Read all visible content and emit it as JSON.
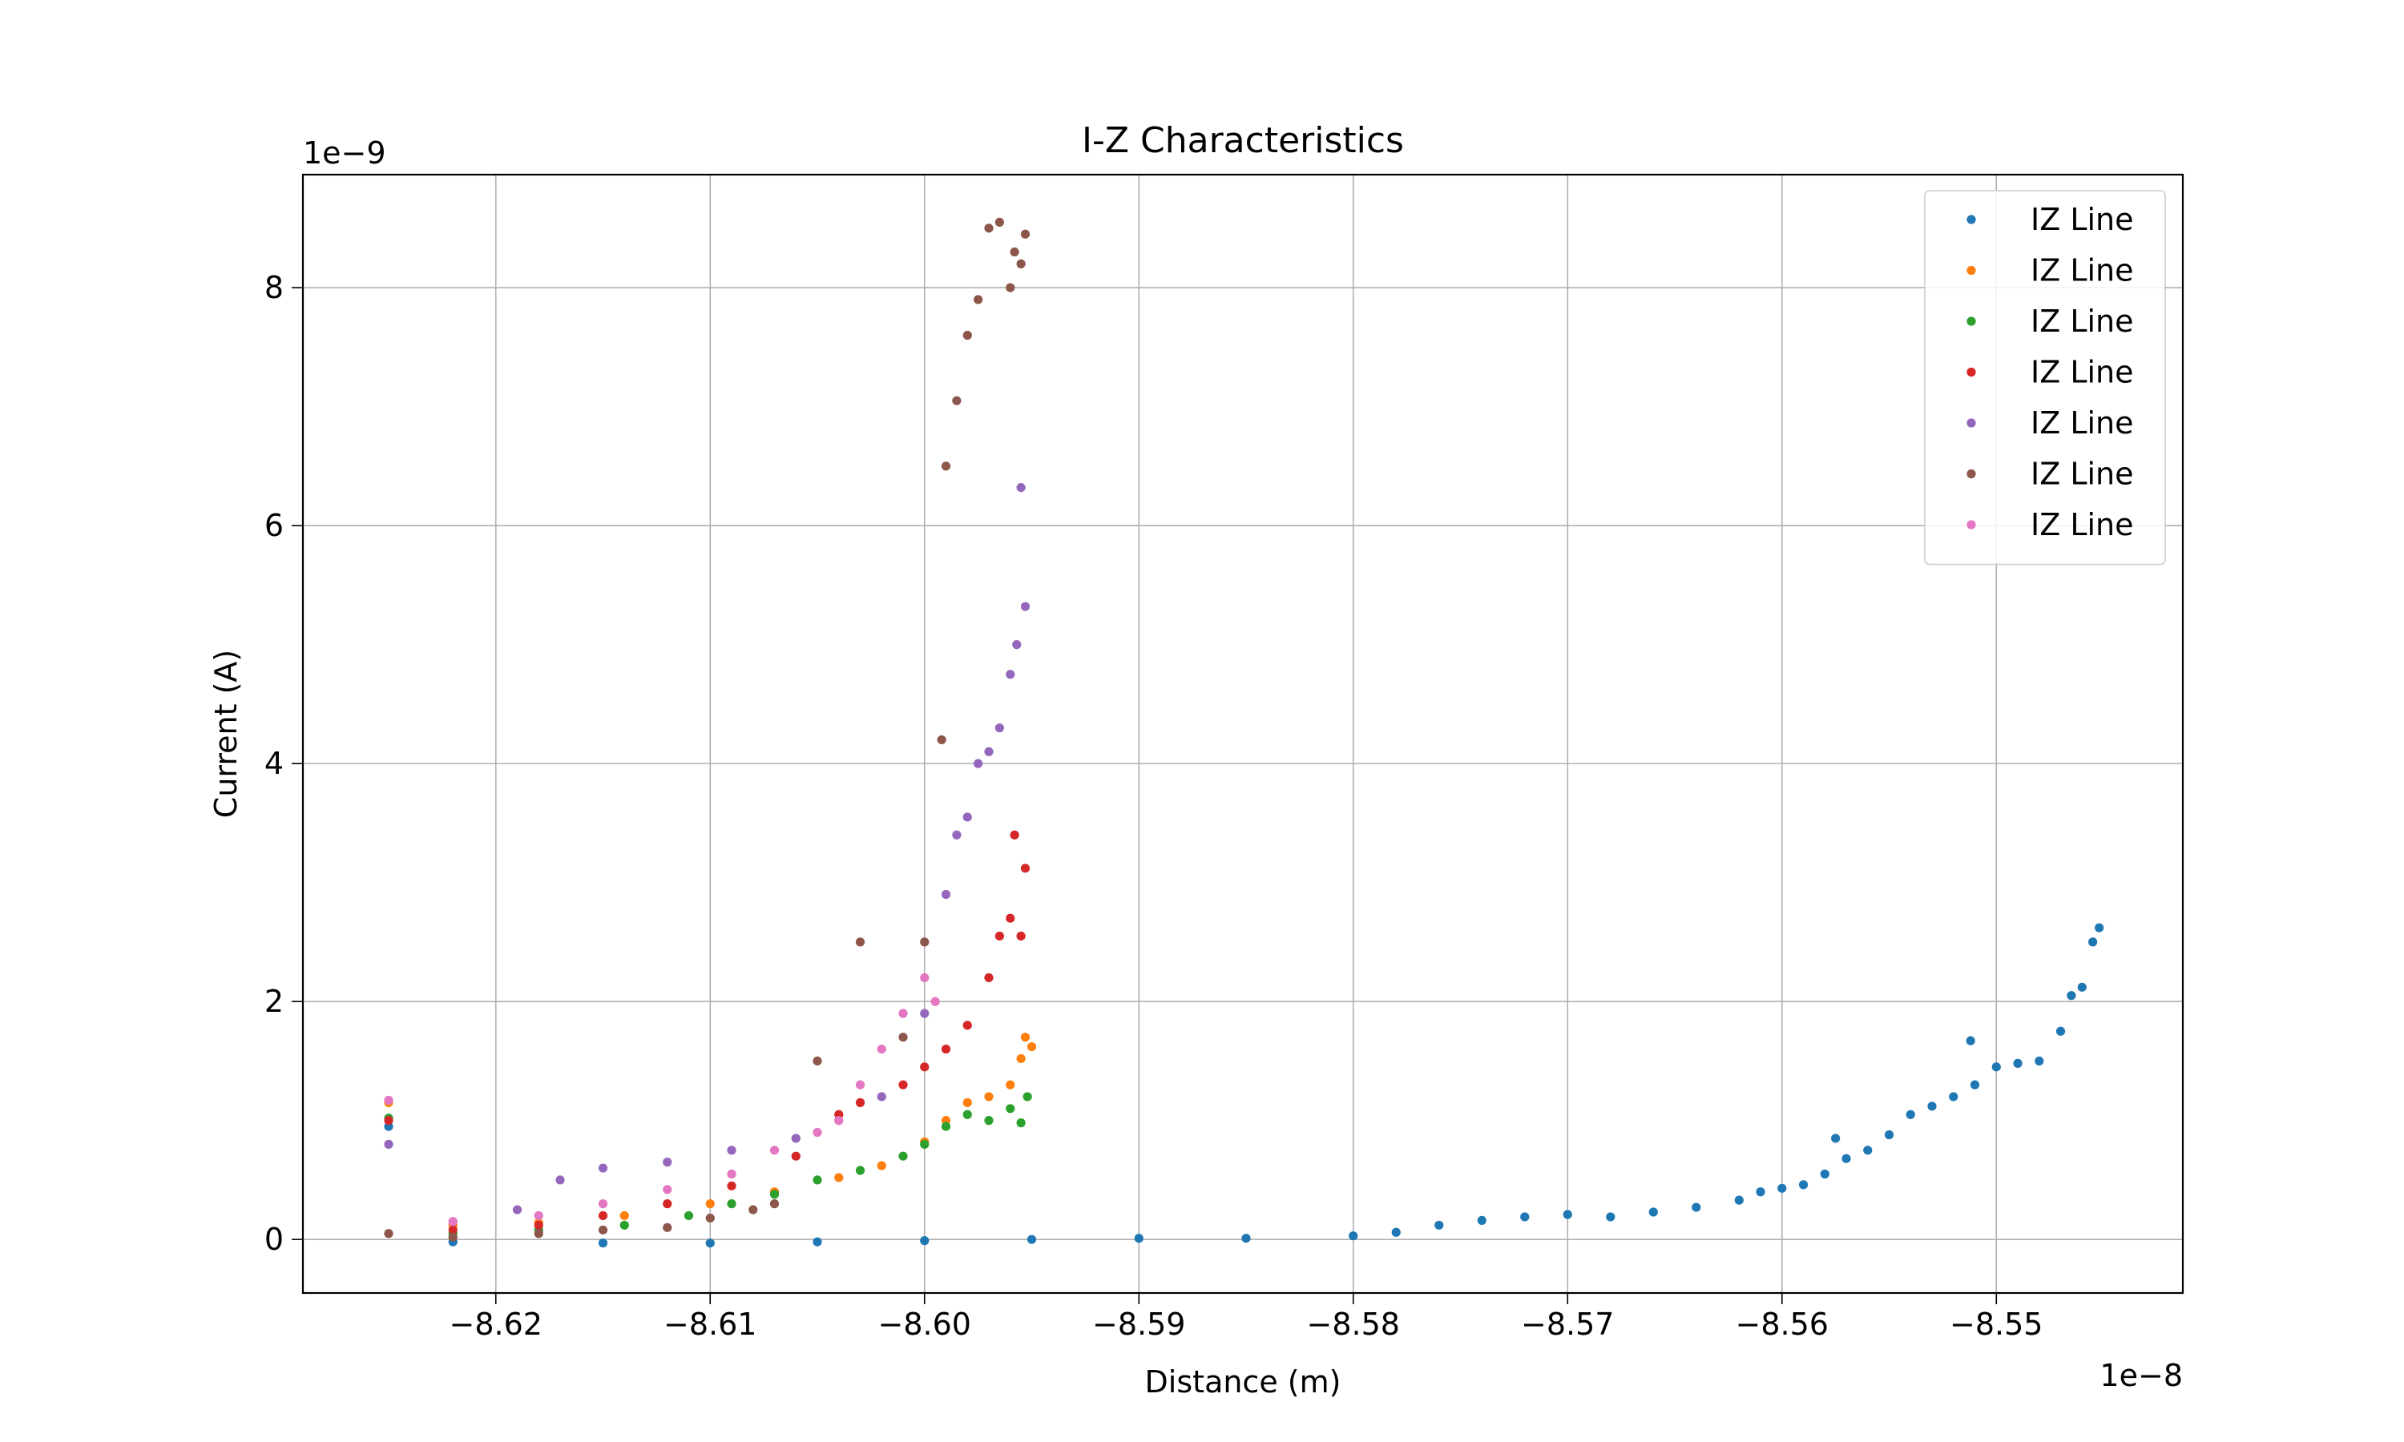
{
  "chart_data": {
    "type": "scatter",
    "title": "I-Z Characteristics",
    "xlabel": "Distance (m)",
    "ylabel": "Current (A)",
    "x_offset_text": "1e−8",
    "y_offset_text": "1e−9",
    "xlim": [
      -8.629,
      -8.5413
    ],
    "ylim": [
      -0.45,
      8.95
    ],
    "x_ticks": [
      -8.62,
      -8.61,
      -8.6,
      -8.59,
      -8.58,
      -8.57,
      -8.56,
      -8.55
    ],
    "x_tick_labels": [
      "−8.62",
      "−8.61",
      "−8.60",
      "−8.59",
      "−8.58",
      "−8.57",
      "−8.56",
      "−8.55"
    ],
    "y_ticks": [
      0,
      2,
      4,
      6,
      8
    ],
    "y_tick_labels": [
      "0",
      "2",
      "4",
      "6",
      "8"
    ],
    "grid": true,
    "legend_position": "top-right",
    "series": [
      {
        "name": "IZ Line",
        "color": "#1f77b4",
        "points": [
          [
            -8.625,
            0.95
          ],
          [
            -8.622,
            -0.02
          ],
          [
            -8.615,
            -0.03
          ],
          [
            -8.61,
            -0.03
          ],
          [
            -8.605,
            -0.02
          ],
          [
            -8.6,
            -0.01
          ],
          [
            -8.595,
            0.0
          ],
          [
            -8.59,
            0.01
          ],
          [
            -8.585,
            0.01
          ],
          [
            -8.58,
            0.03
          ],
          [
            -8.578,
            0.06
          ],
          [
            -8.576,
            0.12
          ],
          [
            -8.574,
            0.16
          ],
          [
            -8.572,
            0.19
          ],
          [
            -8.57,
            0.21
          ],
          [
            -8.568,
            0.19
          ],
          [
            -8.566,
            0.23
          ],
          [
            -8.564,
            0.27
          ],
          [
            -8.562,
            0.33
          ],
          [
            -8.561,
            0.4
          ],
          [
            -8.56,
            0.43
          ],
          [
            -8.559,
            0.46
          ],
          [
            -8.558,
            0.55
          ],
          [
            -8.5575,
            0.85
          ],
          [
            -8.557,
            0.68
          ],
          [
            -8.556,
            0.75
          ],
          [
            -8.555,
            0.88
          ],
          [
            -8.554,
            1.05
          ],
          [
            -8.553,
            1.12
          ],
          [
            -8.552,
            1.2
          ],
          [
            -8.5512,
            1.67
          ],
          [
            -8.551,
            1.3
          ],
          [
            -8.55,
            1.45
          ],
          [
            -8.549,
            1.48
          ],
          [
            -8.548,
            1.5
          ],
          [
            -8.547,
            1.75
          ],
          [
            -8.5465,
            2.05
          ],
          [
            -8.546,
            2.12
          ],
          [
            -8.5455,
            2.5
          ],
          [
            -8.5452,
            2.62
          ]
        ]
      },
      {
        "name": "IZ Line",
        "color": "#ff7f0e",
        "points": [
          [
            -8.625,
            1.15
          ],
          [
            -8.622,
            0.12
          ],
          [
            -8.618,
            0.14
          ],
          [
            -8.614,
            0.2
          ],
          [
            -8.61,
            0.3
          ],
          [
            -8.607,
            0.4
          ],
          [
            -8.604,
            0.52
          ],
          [
            -8.602,
            0.62
          ],
          [
            -8.6,
            0.82
          ],
          [
            -8.599,
            1.0
          ],
          [
            -8.598,
            1.15
          ],
          [
            -8.597,
            1.2
          ],
          [
            -8.596,
            1.3
          ],
          [
            -8.5955,
            1.52
          ],
          [
            -8.595,
            1.62
          ],
          [
            -8.5953,
            1.7
          ]
        ]
      },
      {
        "name": "IZ Line",
        "color": "#2ca02c",
        "points": [
          [
            -8.625,
            1.02
          ],
          [
            -8.622,
            0.05
          ],
          [
            -8.618,
            0.08
          ],
          [
            -8.614,
            0.12
          ],
          [
            -8.611,
            0.2
          ],
          [
            -8.609,
            0.3
          ],
          [
            -8.607,
            0.38
          ],
          [
            -8.605,
            0.5
          ],
          [
            -8.603,
            0.58
          ],
          [
            -8.601,
            0.7
          ],
          [
            -8.6,
            0.8
          ],
          [
            -8.599,
            0.95
          ],
          [
            -8.598,
            1.05
          ],
          [
            -8.597,
            1.0
          ],
          [
            -8.596,
            1.1
          ],
          [
            -8.5955,
            0.98
          ],
          [
            -8.5952,
            1.2
          ]
        ]
      },
      {
        "name": "IZ Line",
        "color": "#d62728",
        "points": [
          [
            -8.625,
            1.0
          ],
          [
            -8.622,
            0.08
          ],
          [
            -8.618,
            0.12
          ],
          [
            -8.615,
            0.2
          ],
          [
            -8.612,
            0.3
          ],
          [
            -8.609,
            0.45
          ],
          [
            -8.606,
            0.7
          ],
          [
            -8.604,
            1.05
          ],
          [
            -8.603,
            1.15
          ],
          [
            -8.601,
            1.3
          ],
          [
            -8.6,
            1.45
          ],
          [
            -8.599,
            1.6
          ],
          [
            -8.598,
            1.8
          ],
          [
            -8.597,
            2.2
          ],
          [
            -8.5965,
            2.55
          ],
          [
            -8.596,
            2.7
          ],
          [
            -8.5958,
            3.4
          ],
          [
            -8.5955,
            2.55
          ],
          [
            -8.5953,
            3.12
          ]
        ]
      },
      {
        "name": "IZ Line",
        "color": "#9467bd",
        "points": [
          [
            -8.625,
            0.8
          ],
          [
            -8.622,
            0.15
          ],
          [
            -8.619,
            0.25
          ],
          [
            -8.617,
            0.5
          ],
          [
            -8.615,
            0.6
          ],
          [
            -8.612,
            0.65
          ],
          [
            -8.609,
            0.75
          ],
          [
            -8.606,
            0.85
          ],
          [
            -8.604,
            1.0
          ],
          [
            -8.602,
            1.2
          ],
          [
            -8.6,
            1.9
          ],
          [
            -8.599,
            2.9
          ],
          [
            -8.5985,
            3.4
          ],
          [
            -8.598,
            3.55
          ],
          [
            -8.5975,
            4.0
          ],
          [
            -8.597,
            4.1
          ],
          [
            -8.5965,
            4.3
          ],
          [
            -8.596,
            4.75
          ],
          [
            -8.5957,
            5.0
          ],
          [
            -8.5955,
            6.32
          ],
          [
            -8.5953,
            5.32
          ]
        ]
      },
      {
        "name": "IZ Line",
        "color": "#8c564b",
        "points": [
          [
            -8.625,
            0.05
          ],
          [
            -8.622,
            0.02
          ],
          [
            -8.618,
            0.05
          ],
          [
            -8.615,
            0.08
          ],
          [
            -8.612,
            0.1
          ],
          [
            -8.61,
            0.18
          ],
          [
            -8.608,
            0.25
          ],
          [
            -8.607,
            0.3
          ],
          [
            -8.605,
            1.5
          ],
          [
            -8.603,
            2.5
          ],
          [
            -8.601,
            1.7
          ],
          [
            -8.6,
            2.5
          ],
          [
            -8.5992,
            4.2
          ],
          [
            -8.599,
            6.5
          ],
          [
            -8.5985,
            7.05
          ],
          [
            -8.598,
            7.6
          ],
          [
            -8.5975,
            7.9
          ],
          [
            -8.597,
            8.5
          ],
          [
            -8.5965,
            8.55
          ],
          [
            -8.596,
            8.0
          ],
          [
            -8.5958,
            8.3
          ],
          [
            -8.5955,
            8.2
          ],
          [
            -8.5953,
            8.45
          ]
        ]
      },
      {
        "name": "IZ Line",
        "color": "#e377c2",
        "points": [
          [
            -8.625,
            1.17
          ],
          [
            -8.622,
            0.15
          ],
          [
            -8.618,
            0.2
          ],
          [
            -8.615,
            0.3
          ],
          [
            -8.612,
            0.42
          ],
          [
            -8.609,
            0.55
          ],
          [
            -8.607,
            0.75
          ],
          [
            -8.605,
            0.9
          ],
          [
            -8.604,
            1.0
          ],
          [
            -8.603,
            1.3
          ],
          [
            -8.602,
            1.6
          ],
          [
            -8.601,
            1.9
          ],
          [
            -8.6,
            2.2
          ],
          [
            -8.5995,
            2.0
          ]
        ]
      }
    ]
  }
}
